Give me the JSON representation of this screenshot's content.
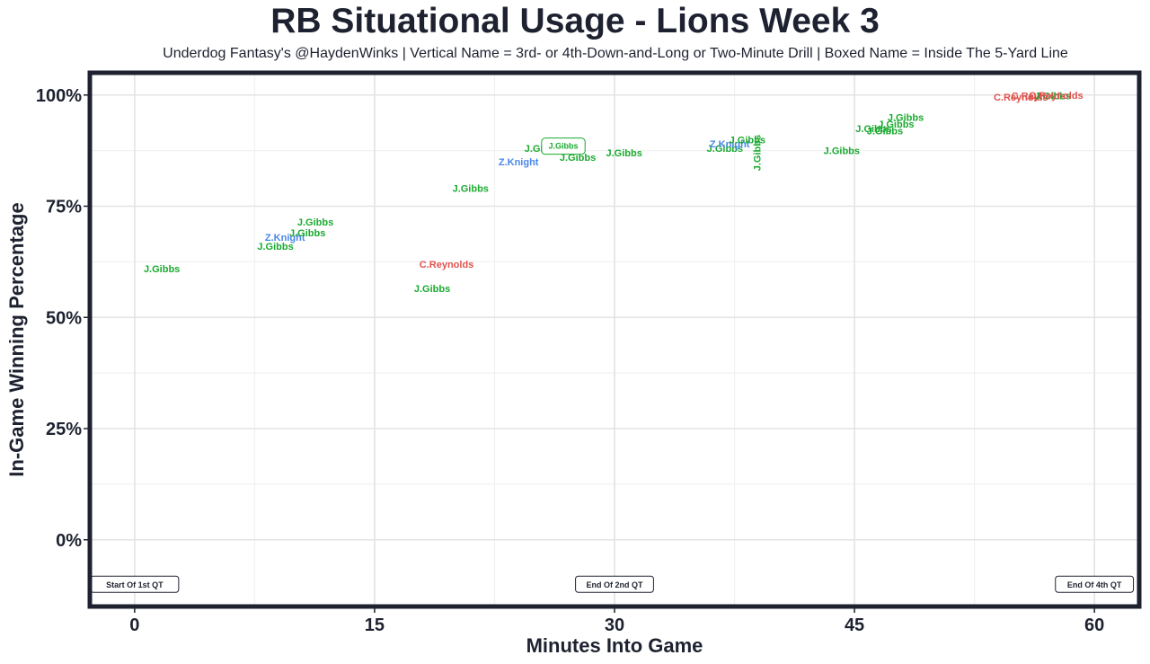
{
  "chart_data": {
    "type": "scatter",
    "title": "RB Situational Usage - Lions Week 3",
    "subtitle": "Underdog Fantasy's @HaydenWinks | Vertical Name = 3rd- or 4th-Down-and-Long or Two-Minute Drill | Boxed Name = Inside The 5-Yard Line",
    "xlabel": "Minutes Into Game",
    "ylabel": "In-Game Winning Percentage",
    "xlim": [
      -2.8,
      62.8
    ],
    "ylim": [
      -15,
      105
    ],
    "x_ticks": [
      0,
      15,
      30,
      45,
      60
    ],
    "x_tick_labels": [
      "0",
      "15",
      "30",
      "45",
      "60"
    ],
    "y_ticks": [
      0,
      25,
      50,
      75,
      100
    ],
    "y_tick_labels": [
      "0%",
      "25%",
      "50%",
      "75%",
      "100%"
    ],
    "grid": true,
    "colors": {
      "J.Gibbs": "#1aaa2f",
      "Z.Knight": "#4a86e8",
      "C.Reynolds": "#e0524e"
    },
    "points": [
      {
        "label": "J.Gibbs",
        "x": 1.7,
        "y": 61
      },
      {
        "label": "J.Gibbs",
        "x": 8.8,
        "y": 66
      },
      {
        "label": "Z.Knight",
        "x": 9.4,
        "y": 68
      },
      {
        "label": "J.Gibbs",
        "x": 10.8,
        "y": 69
      },
      {
        "label": "J.Gibbs",
        "x": 11.3,
        "y": 71.5
      },
      {
        "label": "J.Gibbs",
        "x": 18.6,
        "y": 56.5
      },
      {
        "label": "C.Reynolds",
        "x": 19.5,
        "y": 62
      },
      {
        "label": "J.Gibbs",
        "x": 21,
        "y": 79
      },
      {
        "label": "Z.Knight",
        "x": 24,
        "y": 85
      },
      {
        "label": "J.Gibbs",
        "x": 25.5,
        "y": 88
      },
      {
        "label": "J.Gibbs",
        "x": 27.7,
        "y": 86
      },
      {
        "label": "J.Gibbs",
        "x": 30.6,
        "y": 87
      },
      {
        "label": "J.Gibbs",
        "x": 36.9,
        "y": 88
      },
      {
        "label": "Z.Knight",
        "x": 37.2,
        "y": 89
      },
      {
        "label": "J.Gibbs",
        "x": 38.3,
        "y": 90
      },
      {
        "label": "J.Gibbs",
        "x": 38.9,
        "y": 87,
        "vertical": true
      },
      {
        "label": "J.Gibbs",
        "x": 44.2,
        "y": 87.5
      },
      {
        "label": "J.Gibbs",
        "x": 46.2,
        "y": 92.5
      },
      {
        "label": "J.Gibbs",
        "x": 46.9,
        "y": 92
      },
      {
        "label": "J.Gibbs",
        "x": 47.6,
        "y": 93.5
      },
      {
        "label": "J.Gibbs",
        "x": 48.2,
        "y": 95
      },
      {
        "label": "C.Reynolds",
        "x": 55.4,
        "y": 99.5
      },
      {
        "label": "C.Reynolds",
        "x": 56.5,
        "y": 99.8
      },
      {
        "label": "J.Gibbs",
        "x": 57.4,
        "y": 99.8
      },
      {
        "label": "C.Reynolds",
        "x": 57.6,
        "y": 100
      }
    ],
    "boxed_points": [
      {
        "label": "J.Gibbs",
        "x": 26.8,
        "y": 88.5
      }
    ],
    "quarter_markers": [
      {
        "label": "Start Of 1st QT",
        "x": 0
      },
      {
        "label": "End Of 2nd QT",
        "x": 30
      },
      {
        "label": "End Of 4th QT",
        "x": 60
      }
    ]
  }
}
